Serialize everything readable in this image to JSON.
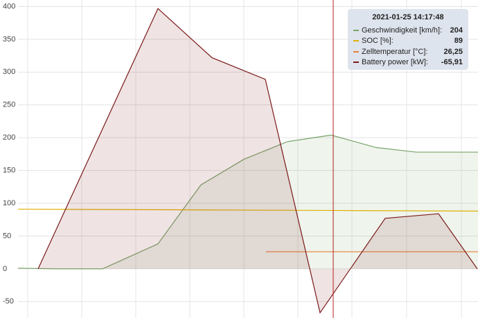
{
  "chart_data": {
    "type": "line",
    "ylim": [
      -75,
      410
    ],
    "yticks": [
      -50,
      0,
      50,
      100,
      150,
      200,
      250,
      300,
      350,
      400
    ],
    "xlim": [
      0,
      664
    ],
    "grid": true,
    "fill": true,
    "series": [
      {
        "name": "Geschwindigkeit [km/h]:",
        "color": "#7aa36a",
        "x": [
          0,
          59,
          122,
          202,
          264,
          326,
          389,
          452,
          517,
          575,
          664
        ],
        "values": [
          1,
          0,
          0,
          38,
          128,
          167,
          194,
          204,
          185,
          178,
          178
        ]
      },
      {
        "name": "SOC [%]:",
        "color": "#e0b000",
        "x": [
          0,
          452,
          664
        ],
        "values": [
          91,
          89,
          88
        ]
      },
      {
        "name": "Zelltemperatur [°C]:",
        "color": "#e8803a",
        "x": [
          358,
          664
        ],
        "values": [
          26,
          26
        ]
      },
      {
        "name": "Battery power [kW]:",
        "color": "#7a1818",
        "x": [
          29,
          202,
          280,
          357,
          436,
          530,
          607,
          663
        ],
        "values": [
          0,
          397,
          322,
          289,
          -67,
          77,
          84,
          0
        ]
      }
    ],
    "cursor_x": 455,
    "tooltip": {
      "title": "2021-01-25 14:17:48",
      "values": [
        "204",
        "89",
        "26,25",
        "-65,91"
      ]
    }
  }
}
